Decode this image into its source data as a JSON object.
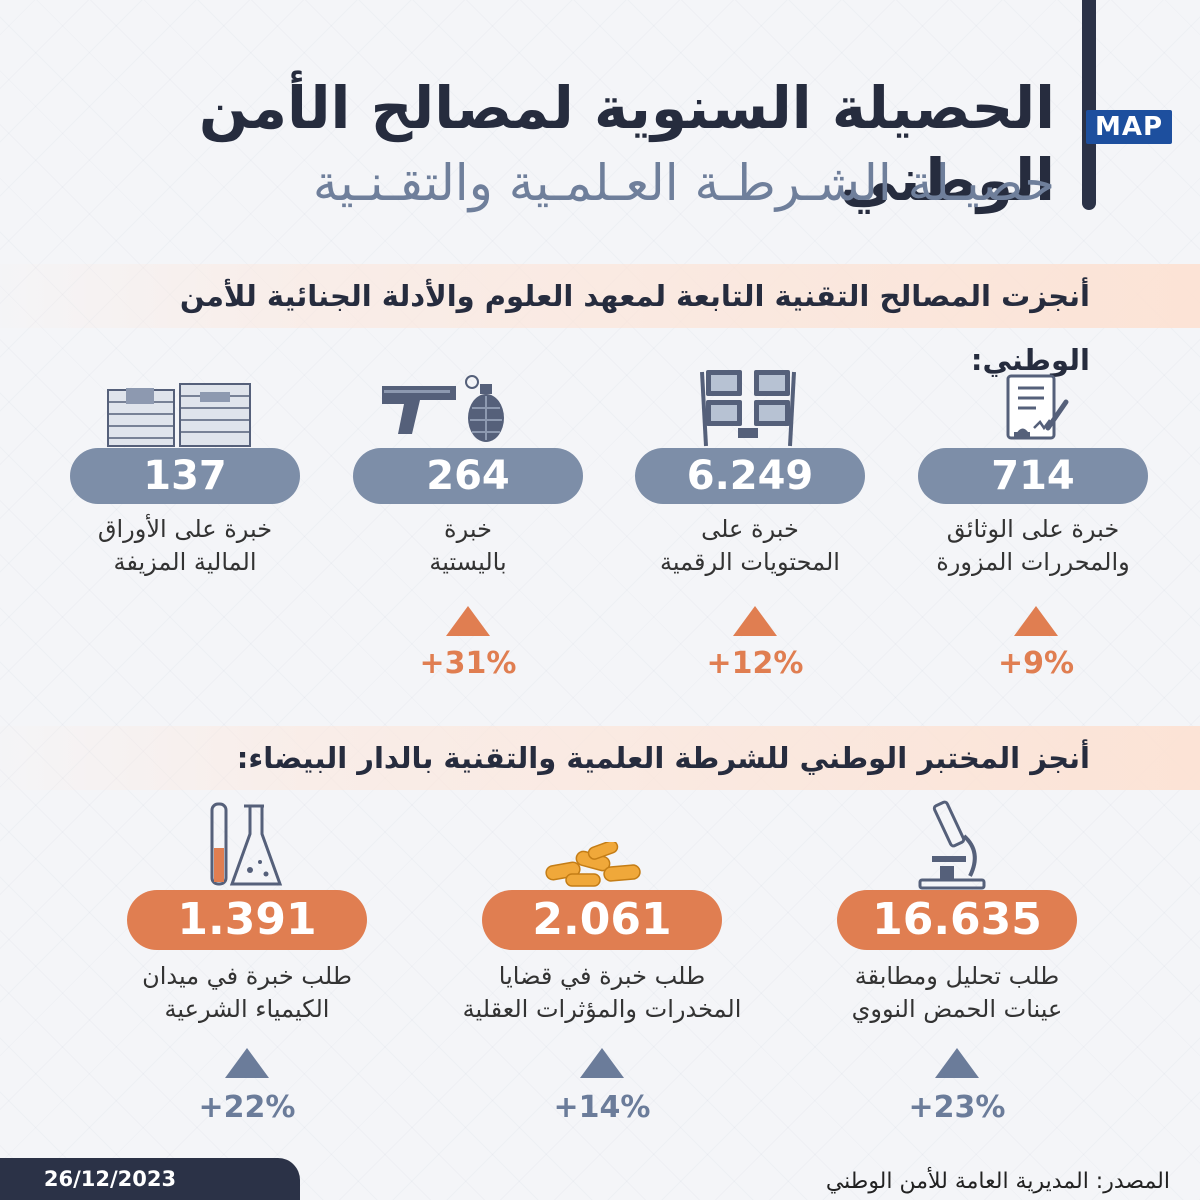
{
  "header": {
    "title": "الحصيلة السنوية لمصالح الأمن الوطني",
    "subtitle": "حصيـلة الشـرطـة العـلمـية والتقـنـية",
    "logo": "MAP"
  },
  "section1": {
    "heading": "أنجزت المصالح التقنية التابعة لمعهد العلوم والأدلة الجنائية للأمن الوطني:",
    "items": [
      {
        "icon": "forged-document-icon",
        "value": "714",
        "label_line1": "خبرة على الوثائق",
        "label_line2": "والمحررات المزورة",
        "change": "+9%"
      },
      {
        "icon": "digital-screens-icon",
        "value": "6.249",
        "label_line1": "خبرة على",
        "label_line2": "المحتويات الرقمية",
        "change": "+12%"
      },
      {
        "icon": "gun-grenade-icon",
        "value": "264",
        "label_line1": "خبرة",
        "label_line2": "باليستية",
        "change": "+31%"
      },
      {
        "icon": "banknotes-icon",
        "value": "137",
        "label_line1": "خبرة على الأوراق",
        "label_line2": "المالية المزيفة"
      }
    ]
  },
  "section2": {
    "heading": "أنجز المختبر الوطني للشرطة العلمية والتقنية بالدار البيضاء:",
    "items": [
      {
        "icon": "microscope-icon",
        "value": "16.635",
        "label_line1": "طلب تحليل ومطابقة",
        "label_line2": "عينات الحمض النووي",
        "change": "+23%"
      },
      {
        "icon": "pills-icon",
        "value": "2.061",
        "label_line1": "طلب خبرة في قضايا",
        "label_line2": "المخدرات والمؤثرات العقلية",
        "change": "+14%"
      },
      {
        "icon": "lab-flask-icon",
        "value": "1.391",
        "label_line1": "طلب خبرة في ميدان",
        "label_line2": "الكيمياء الشرعية",
        "change": "+22%"
      }
    ]
  },
  "footer": {
    "source": "المصدر: المديرية العامة للأمن الوطني",
    "date": "26/12/2023"
  },
  "colors": {
    "navy": "#2b3247",
    "slate_blue": "#7d8ea8",
    "orange": "#e07e51",
    "band": "#fce2d4",
    "map_blue": "#1d4f9e"
  }
}
